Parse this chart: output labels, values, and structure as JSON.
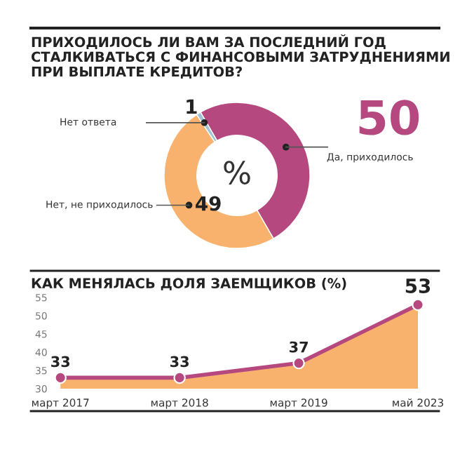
{
  "chart_data": [
    {
      "type": "donut",
      "title": "ПРИХОДИЛОСЬ ЛИ ВАМ ЗА ПОСЛЕДНИЙ ГОД\nСТАЛКИВАТЬСЯ С ФИНАНСОВЫМИ ЗАТРУДНЕНИЯМИ\nПРИ ВЫПЛАТЕ КРЕДИТОВ?",
      "categories": [
        "Да, приходилось",
        "Нет, не приходилось",
        "Нет ответа"
      ],
      "values": [
        50,
        49,
        1
      ],
      "colors": [
        "#b5487f",
        "#f9b26d",
        "#9fc3d4"
      ],
      "data_labels": true,
      "annotations": [
        "%"
      ]
    },
    {
      "type": "area",
      "title": "КАК МЕНЯЛАСЬ ДОЛЯ ЗАЕМЩИКОВ (%)",
      "categories": [
        "март 2017",
        "март 2018",
        "март 2019",
        "май 2023"
      ],
      "series": [
        {
          "type": "area",
          "color": "#b5487f",
          "values": [
            33,
            33,
            37,
            53
          ],
          "marker": "circle"
        }
      ],
      "ylim": [
        30,
        55
      ],
      "yticks": [
        30,
        35,
        40,
        45,
        50,
        55
      ],
      "grid": false,
      "data_labels": true
    }
  ]
}
